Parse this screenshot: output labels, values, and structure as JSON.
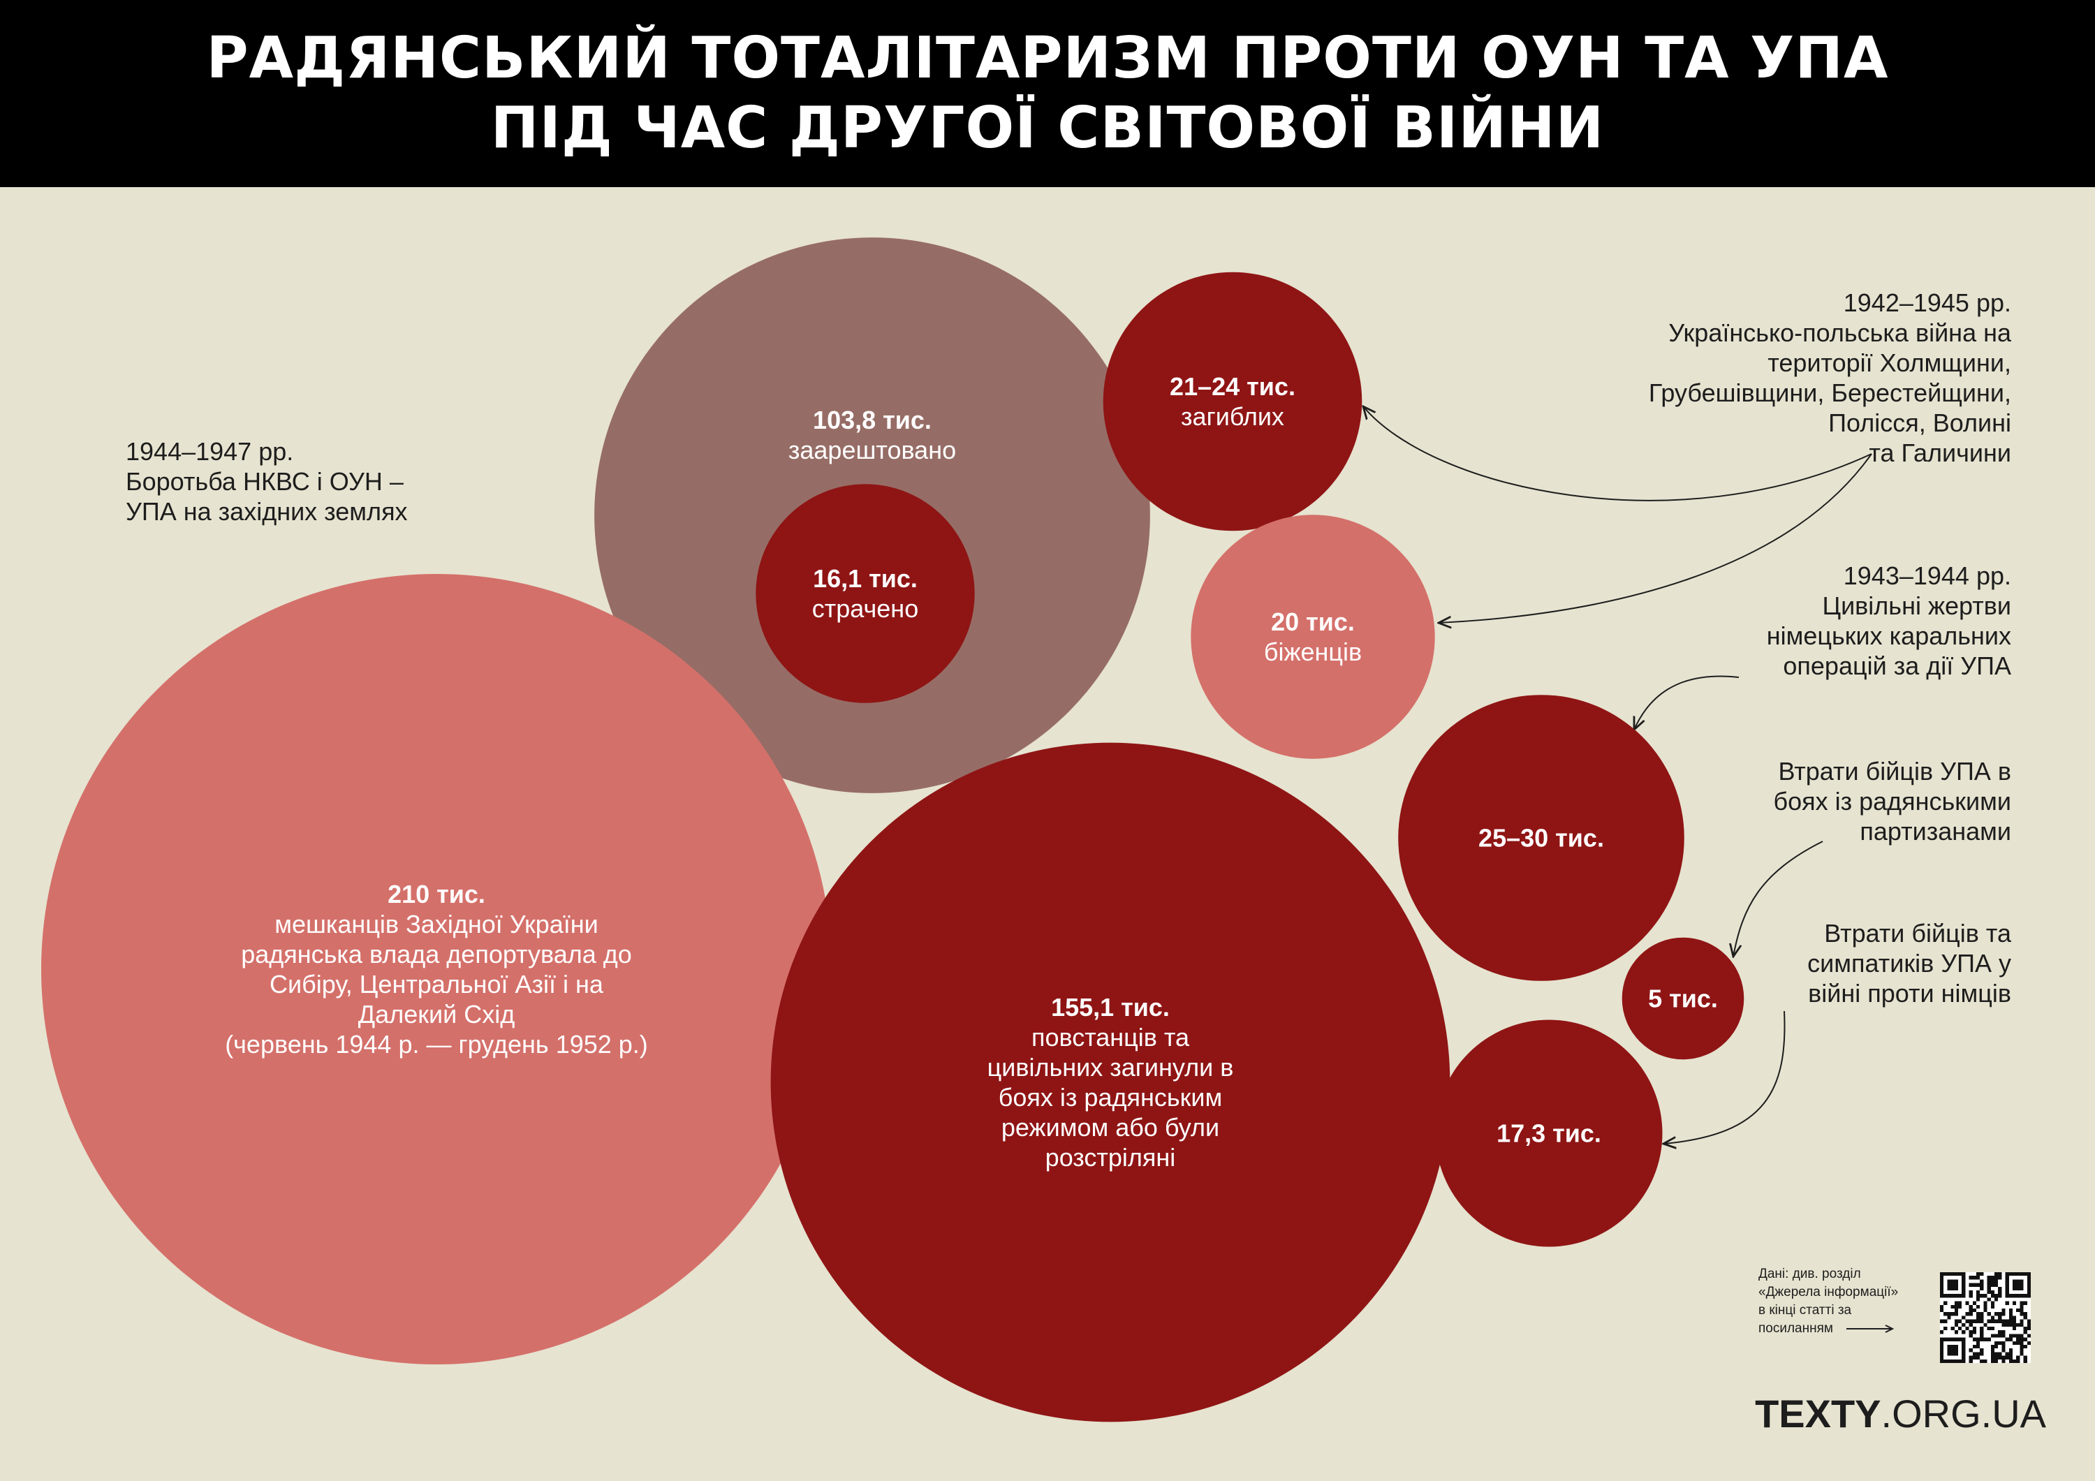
{
  "header": {
    "line1": "РАДЯНСЬКИЙ ТОТАЛІТАРИЗМ ПРОТИ ОУН ТА УПА",
    "line2": "ПІД ЧАС ДРУГОЇ СВІТОВОЇ ВІЙНИ"
  },
  "colors": {
    "dark_red": "#8f1515",
    "light_red": "#d4706a",
    "mauve": "#966d66",
    "background": "#e6e3d0",
    "header_bg": "#000000"
  },
  "notes": {
    "left": {
      "line1": "1944–1947 рр.",
      "line2": "Боротьба НКВС і ОУН –",
      "line3": "УПА на західних землях"
    },
    "right1": {
      "line1": "1942–1945 рр.",
      "line2": "Українсько-польська війна на",
      "line3": "території Холмщини,",
      "line4": "Грубешівщини, Берестейщини,",
      "line5": "Полісся, Волині",
      "line6": "та Галичини"
    },
    "right2": {
      "line1": "1943–1944 рр.",
      "line2": "Цивільні жертви",
      "line3": "німецьких каральних",
      "line4": "операцій за дії УПА"
    },
    "right3": {
      "line1": "Втрати бійців УПА в",
      "line2": "боях із радянськими",
      "line3": "партизанами"
    },
    "right4": {
      "line1": "Втрати бійців та",
      "line2": "симпатиків УПА у",
      "line3": "війні проти німців"
    }
  },
  "source": {
    "line1": "Дані: див. розділ",
    "line2": "«Джерела інформації»",
    "line3": "в кінці статті за",
    "line4": "посиланням"
  },
  "brand": {
    "bold": "TEXTY",
    "rest": ".ORG.UA"
  },
  "chart_data": {
    "type": "bubble",
    "title": "РАДЯНСЬКИЙ ТОТАЛІТАРИЗМ ПРОТИ ОУН ТА УПА ПІД ЧАС ДРУГОЇ СВІТОВОЇ ВІЙНИ",
    "unit": "тис.",
    "bubbles": [
      {
        "id": "arrested",
        "value": 103.8,
        "label": "103,8 тис.",
        "desc": [
          "заарештовано"
        ],
        "color": "mauve",
        "group": "1944–1947"
      },
      {
        "id": "executed",
        "value": 16.1,
        "label": "16,1 тис.",
        "desc": [
          "страчено"
        ],
        "color": "dark_red",
        "group": "1944–1947",
        "nested_in": "arrested"
      },
      {
        "id": "deported",
        "value": 210,
        "label": "210 тис.",
        "desc": [
          "мешканців Західної України",
          "радянська влада депортувала до",
          "Сибіру, Центральної Азії і на",
          "Далекий Схід",
          "(червень 1944 р. — грудень 1952 р.)"
        ],
        "color": "light_red",
        "group": "1944–1947"
      },
      {
        "id": "killed",
        "value": 155.1,
        "label": "155,1 тис.",
        "desc": [
          "повстанців та",
          "цивільних загинули в",
          "боях із радянським",
          "режимом або були",
          "розстріляні"
        ],
        "color": "dark_red",
        "group": "1944–1947"
      },
      {
        "id": "ukr_pol_dead",
        "value": 22.5,
        "label": "21–24 тис.",
        "desc": [
          "загиблих"
        ],
        "color": "dark_red",
        "group": "1942–1945"
      },
      {
        "id": "ukr_pol_refugees",
        "value": 20,
        "label": "20 тис.",
        "desc": [
          "біженців"
        ],
        "color": "light_red",
        "group": "1942–1945"
      },
      {
        "id": "german_punitive",
        "value": 27.5,
        "label": "25–30 тис.",
        "desc": [],
        "color": "dark_red",
        "group": "1943–1944"
      },
      {
        "id": "upa_vs_partisans",
        "value": 5,
        "label": "5 тис.",
        "desc": [],
        "color": "dark_red",
        "group": "partisans"
      },
      {
        "id": "upa_vs_germans",
        "value": 17.3,
        "label": "17,3 тис.",
        "desc": [],
        "color": "dark_red",
        "group": "germans"
      }
    ]
  }
}
